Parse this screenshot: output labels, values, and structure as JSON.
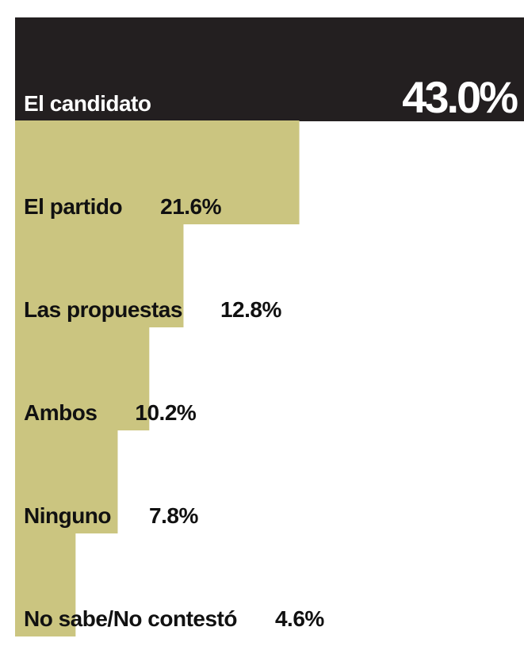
{
  "chart_data": {
    "type": "hbar",
    "categories": [
      "El candidato",
      "El partido",
      "Las propuestas",
      "Ambos",
      "Ninguno",
      "No sabe/No contestó"
    ],
    "values": [
      43.0,
      21.6,
      12.8,
      10.2,
      7.8,
      4.6
    ],
    "value_labels": [
      "43.0%",
      "21.6%",
      "12.8%",
      "10.2%",
      "7.8%",
      "4.6%"
    ],
    "colors": [
      "#231f20",
      "#cbc580",
      "#cbc580",
      "#cbc580",
      "#cbc580",
      "#cbc580"
    ]
  }
}
